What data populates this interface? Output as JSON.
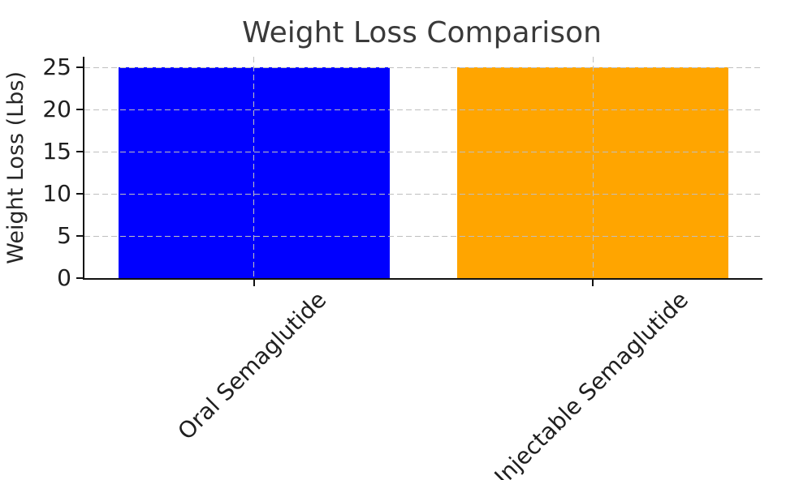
{
  "chart_data": {
    "type": "bar",
    "title": "Weight Loss Comparison",
    "xlabel": "",
    "ylabel": "Weight Loss (Lbs)",
    "categories": [
      "Oral Semaglutide",
      "Injectable Semaglutide"
    ],
    "values": [
      25,
      25
    ],
    "bar_colors": [
      "#0000ff",
      "#ffa500"
    ],
    "bar_width_fraction": 0.8,
    "yticks": [
      0,
      5,
      10,
      15,
      20,
      25
    ],
    "ylim": [
      0,
      26.25
    ],
    "grid": "on",
    "grid_style": "dashed",
    "grid_position": "above-bars",
    "xtick_rotation": 45,
    "legend": "none",
    "colors": {
      "background": "#ffffff",
      "grid": "#bfbfbf",
      "spine": "#111111",
      "title_text": "#3a3a3a",
      "tick_text": "#1f1f1f"
    }
  }
}
